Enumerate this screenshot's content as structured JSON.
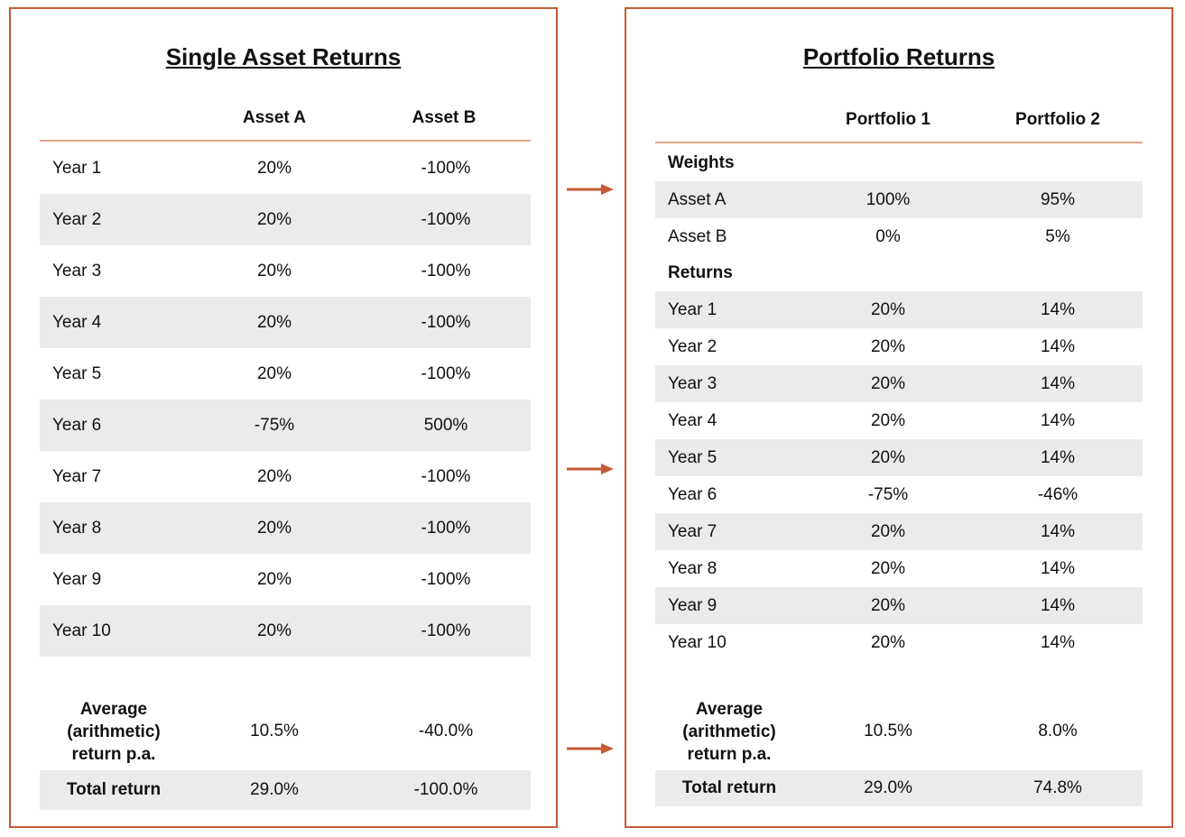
{
  "left": {
    "title": "Single Asset Returns",
    "headers": [
      "Asset A",
      "Asset B"
    ],
    "rows": [
      {
        "label": "Year 1",
        "a": "20%",
        "b": "-100%"
      },
      {
        "label": "Year 2",
        "a": "20%",
        "b": "-100%"
      },
      {
        "label": "Year 3",
        "a": "20%",
        "b": "-100%"
      },
      {
        "label": "Year 4",
        "a": "20%",
        "b": "-100%"
      },
      {
        "label": "Year 5",
        "a": "20%",
        "b": "-100%"
      },
      {
        "label": "Year 6",
        "a": "-75%",
        "b": "500%"
      },
      {
        "label": "Year 7",
        "a": "20%",
        "b": "-100%"
      },
      {
        "label": "Year 8",
        "a": "20%",
        "b": "-100%"
      },
      {
        "label": "Year 9",
        "a": "20%",
        "b": "-100%"
      },
      {
        "label": "Year 10",
        "a": "20%",
        "b": "-100%"
      }
    ],
    "average": {
      "label_l1": "Average",
      "label_l2": "(arithmetic)",
      "label_l3": "return p.a.",
      "a": "10.5%",
      "b": "-40.0%"
    },
    "total": {
      "label": "Total return",
      "a": "29.0%",
      "b": "-100.0%"
    }
  },
  "right": {
    "title": "Portfolio Returns",
    "headers": [
      "Portfolio 1",
      "Portfolio 2"
    ],
    "weights_label": "Weights",
    "weights": [
      {
        "label": "Asset A",
        "a": "100%",
        "b": "95%"
      },
      {
        "label": "Asset B",
        "a": "0%",
        "b": "5%"
      }
    ],
    "returns_label": "Returns",
    "rows": [
      {
        "label": "Year 1",
        "a": "20%",
        "b": "14%"
      },
      {
        "label": "Year 2",
        "a": "20%",
        "b": "14%"
      },
      {
        "label": "Year 3",
        "a": "20%",
        "b": "14%"
      },
      {
        "label": "Year 4",
        "a": "20%",
        "b": "14%"
      },
      {
        "label": "Year 5",
        "a": "20%",
        "b": "14%"
      },
      {
        "label": "Year 6",
        "a": "-75%",
        "b": "-46%"
      },
      {
        "label": "Year 7",
        "a": "20%",
        "b": "14%"
      },
      {
        "label": "Year 8",
        "a": "20%",
        "b": "14%"
      },
      {
        "label": "Year 9",
        "a": "20%",
        "b": "14%"
      },
      {
        "label": "Year 10",
        "a": "20%",
        "b": "14%"
      }
    ],
    "average": {
      "label_l1": "Average",
      "label_l2": "(arithmetic)",
      "label_l3": "return p.a.",
      "a": "10.5%",
      "b": "8.0%"
    },
    "total": {
      "label": "Total return",
      "a": "29.0%",
      "b": "74.8%"
    }
  },
  "colors": {
    "border": "#c55a35",
    "rule": "#e8a48c",
    "shade": "#ebebeb"
  }
}
